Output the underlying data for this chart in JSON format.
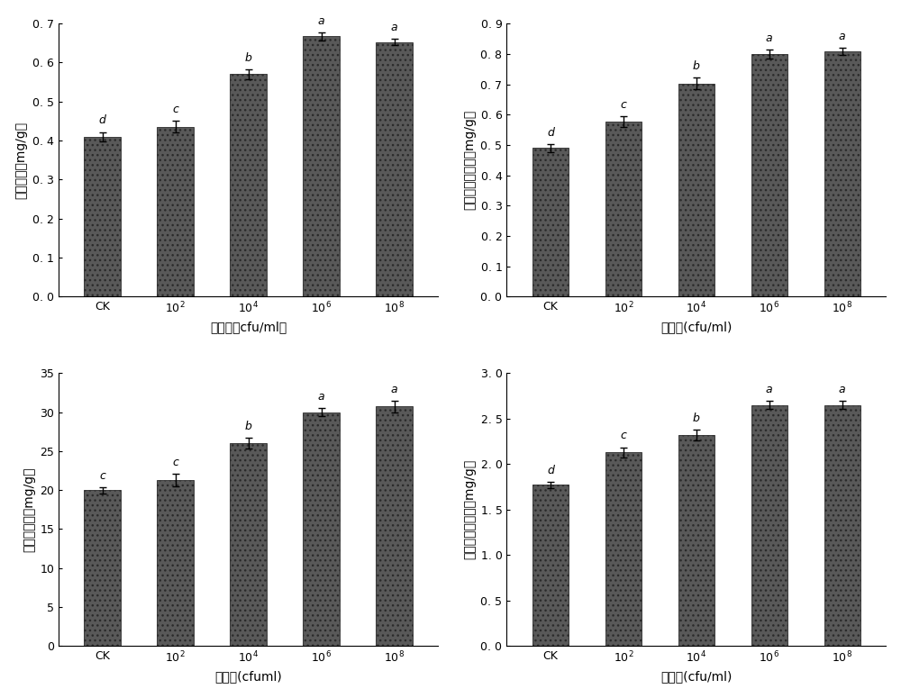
{
  "plots": [
    {
      "ylabel": "脂酶活性（mg/g）",
      "xlabel": "菌浓度（cfu/ml）",
      "values": [
        0.41,
        0.435,
        0.57,
        0.667,
        0.653
      ],
      "errors": [
        0.012,
        0.015,
        0.013,
        0.01,
        0.009
      ],
      "letters": [
        "d",
        "c",
        "b",
        "a",
        "a"
      ],
      "ylim": [
        0,
        0.7
      ],
      "yticks": [
        0.0,
        0.1,
        0.2,
        0.3,
        0.4,
        0.5,
        0.6,
        0.7
      ],
      "ytick_labels": [
        "0. 0",
        "0. 1",
        "0. 2",
        "0. 3",
        "0. 4",
        "0. 5",
        "0. 6",
        "0. 7"
      ]
    },
    {
      "ylabel": "碷生磷酸酶活性（mg/g）",
      "xlabel": "菌浓度(cfu/ml)",
      "values": [
        0.49,
        0.578,
        0.703,
        0.8,
        0.808
      ],
      "errors": [
        0.013,
        0.018,
        0.02,
        0.015,
        0.011
      ],
      "letters": [
        "d",
        "c",
        "b",
        "a",
        "a"
      ],
      "ylim": [
        0,
        0.9
      ],
      "yticks": [
        0.0,
        0.1,
        0.2,
        0.3,
        0.4,
        0.5,
        0.6,
        0.7,
        0.8,
        0.9
      ],
      "ytick_labels": [
        "0. 0",
        "0. 1",
        "0. 2",
        "0. 3",
        "0. 4",
        "0. 5",
        "0. 6",
        "0. 7",
        "0. 8",
        "0. 9"
      ]
    },
    {
      "ylabel": "蔗糖酶活性（mg/g）",
      "xlabel": "菌浓度(cfuml)",
      "values": [
        20.0,
        21.3,
        26.0,
        30.0,
        30.7
      ],
      "errors": [
        0.4,
        0.8,
        0.7,
        0.5,
        0.7
      ],
      "letters": [
        "c",
        "c",
        "b",
        "a",
        "a"
      ],
      "ylim": [
        0,
        35
      ],
      "yticks": [
        0,
        5,
        10,
        15,
        20,
        25,
        30,
        35
      ],
      "ytick_labels": [
        "0",
        "5",
        "10",
        "15",
        "20",
        "25",
        "30",
        "35"
      ]
    },
    {
      "ylabel": "过氧化氢酶活性（mg/g）",
      "xlabel": "菌浓度(cfu/ml)",
      "values": [
        1.77,
        2.13,
        2.32,
        2.65,
        2.65
      ],
      "errors": [
        0.03,
        0.055,
        0.06,
        0.045,
        0.045
      ],
      "letters": [
        "d",
        "c",
        "b",
        "a",
        "a"
      ],
      "ylim": [
        0,
        3.0
      ],
      "yticks": [
        0.0,
        0.5,
        1.0,
        1.5,
        2.0,
        2.5,
        3.0
      ],
      "ytick_labels": [
        "0. 0",
        "0. 5",
        "1. 0",
        "1. 5",
        "2. 0",
        "2. 5",
        "3. 0"
      ]
    }
  ],
  "bar_color": "#595959",
  "bar_width": 0.5,
  "bar_edge_color": "#2a2a2a",
  "background_color": "#ffffff",
  "font_size_label": 10,
  "font_size_tick": 9,
  "font_size_letter": 9,
  "error_cap_size": 3
}
